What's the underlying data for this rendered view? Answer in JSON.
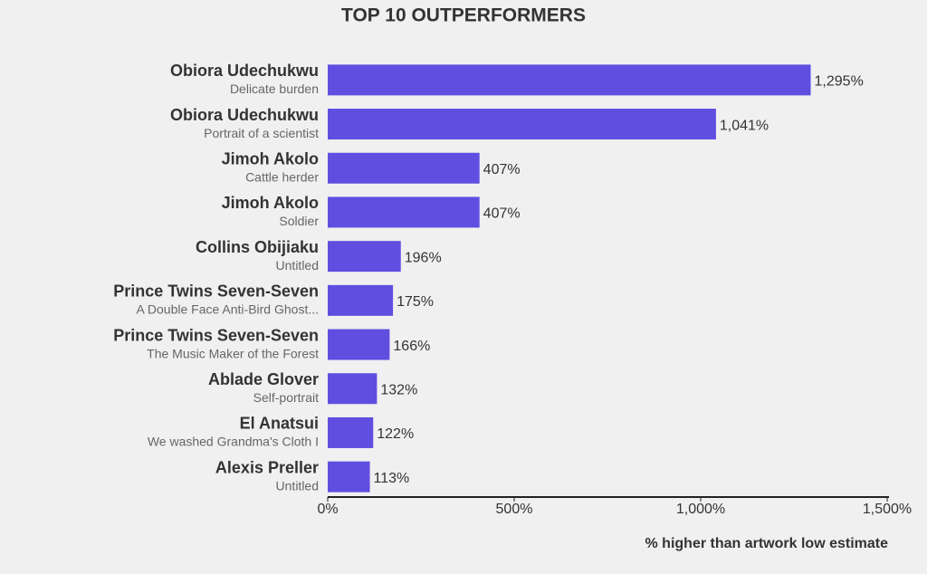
{
  "chart_data": {
    "type": "bar",
    "orientation": "horizontal",
    "title": "TOP 10 OUTPERFORMERS",
    "x_label": "% higher than artwork low estimate",
    "categories": [
      "Obiora Udechukwu",
      "Obiora Udechukwu",
      "Jimoh Akolo",
      "Jimoh Akolo",
      "Collins Obijiaku",
      "Prince Twins Seven-Seven",
      "Prince Twins Seven-Seven",
      "Ablade Glover",
      "El Anatsui",
      "Alexis Preller"
    ],
    "artworks": [
      "Delicate burden",
      "Portrait of a scientist",
      "Cattle herder",
      "Soldier",
      "Untitled",
      "A Double Face Anti-Bird Ghost...",
      "The Music Maker of the Forest",
      "Self-portrait",
      "We washed Grandma's Cloth I",
      "Untitled"
    ],
    "values": [
      1295,
      1041,
      407,
      407,
      196,
      175,
      166,
      132,
      122,
      113
    ],
    "value_labels": [
      "1,295%",
      "1,041%",
      "407%",
      "407%",
      "196%",
      "175%",
      "166%",
      "132%",
      "122%",
      "113%"
    ],
    "color": "#604ee0",
    "xlim": [
      0,
      1500
    ],
    "xticks": [
      {
        "value": 0,
        "label": "0%"
      },
      {
        "value": 500,
        "label": "500%"
      },
      {
        "value": 1000,
        "label": "1,000%"
      },
      {
        "value": 1500,
        "label": "1,500%"
      }
    ]
  }
}
